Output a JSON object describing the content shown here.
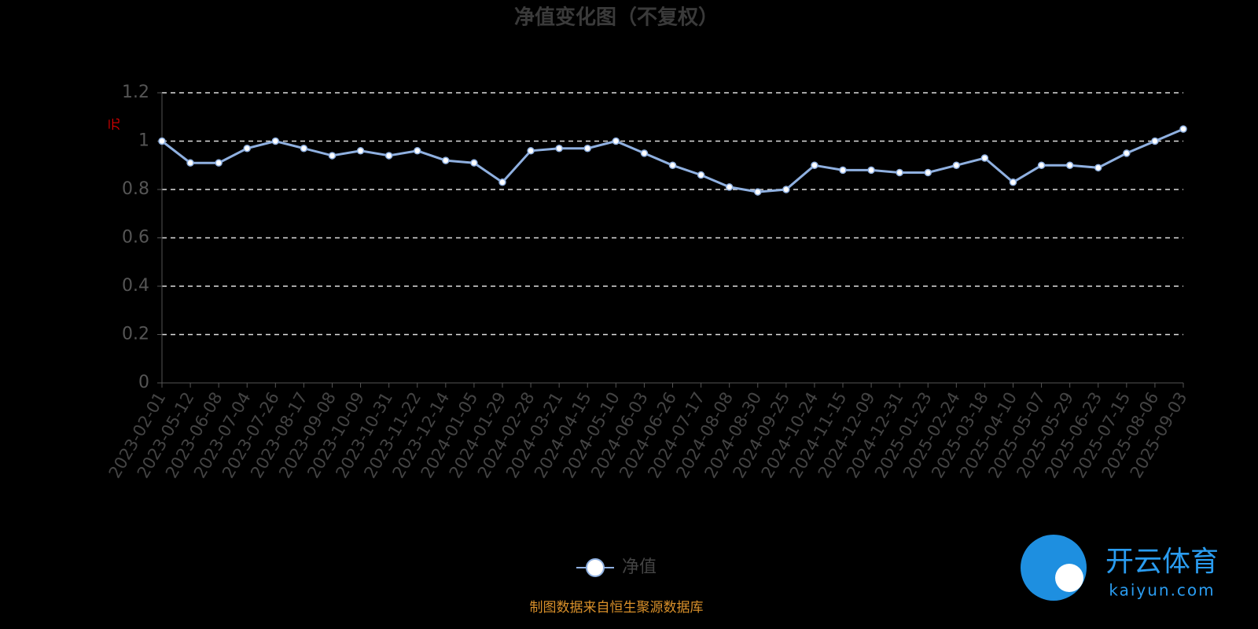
{
  "chart_data": {
    "type": "line",
    "title": "净值变化图（不复权）",
    "y_label": "元",
    "categories": [
      "2023-02-01",
      "2023-05-12",
      "2023-06-08",
      "2023-07-04",
      "2023-07-26",
      "2023-08-17",
      "2023-09-08",
      "2023-10-09",
      "2023-10-31",
      "2023-11-22",
      "2023-12-14",
      "2024-01-05",
      "2024-01-29",
      "2024-02-28",
      "2024-03-21",
      "2024-04-15",
      "2024-05-10",
      "2024-06-03",
      "2024-06-26",
      "2024-07-17",
      "2024-08-08",
      "2024-08-30",
      "2024-09-25",
      "2024-10-24",
      "2024-11-15",
      "2024-12-09",
      "2024-12-31",
      "2025-01-23",
      "2025-02-24",
      "2025-03-18",
      "2025-04-10",
      "2025-05-07",
      "2025-05-29",
      "2025-06-23",
      "2025-07-15",
      "2025-08-06",
      "2025-09-03"
    ],
    "series": [
      {
        "name": "净值",
        "color": "#8fb0e0",
        "values": [
          1.0,
          0.91,
          0.91,
          0.97,
          1.0,
          0.97,
          0.94,
          0.96,
          0.94,
          0.96,
          0.92,
          0.91,
          0.83,
          0.96,
          0.97,
          0.97,
          1.0,
          0.95,
          0.9,
          0.86,
          0.81,
          0.79,
          0.8,
          0.9,
          0.88,
          0.88,
          0.87,
          0.87,
          0.9,
          0.93,
          0.83,
          0.9,
          0.9,
          0.89,
          0.95,
          1.0,
          1.05
        ]
      }
    ],
    "ylim": [
      0,
      1.2
    ],
    "yticks": [
      0,
      0.2,
      0.4,
      0.6,
      0.8,
      1,
      1.2
    ],
    "grid": true,
    "legend": "bottom",
    "source": "制图数据来自恒生聚源数据库"
  },
  "watermark": {
    "name": "开云体育",
    "url": "kaiyun.com"
  }
}
